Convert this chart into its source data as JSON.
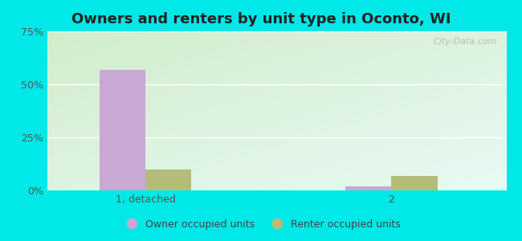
{
  "title": "Owners and renters by unit type in Oconto, WI",
  "categories": [
    "1, detached",
    "2"
  ],
  "owner_values": [
    57.0,
    2.0
  ],
  "renter_values": [
    10.0,
    7.0
  ],
  "owner_color": "#c9a8d4",
  "renter_color": "#b5bc7a",
  "ylim": [
    0,
    75
  ],
  "yticks": [
    0,
    25,
    50,
    75
  ],
  "ytick_labels": [
    "0%",
    "25%",
    "50%",
    "75%"
  ],
  "bar_width": 0.28,
  "watermark": "City-Data.com",
  "legend_labels": [
    "Owner occupied units",
    "Renter occupied units"
  ],
  "title_fontsize": 13,
  "bg_left_top": "#c8e8c0",
  "bg_right_bottom": "#e0fafa",
  "grid_color": "#ffffff"
}
